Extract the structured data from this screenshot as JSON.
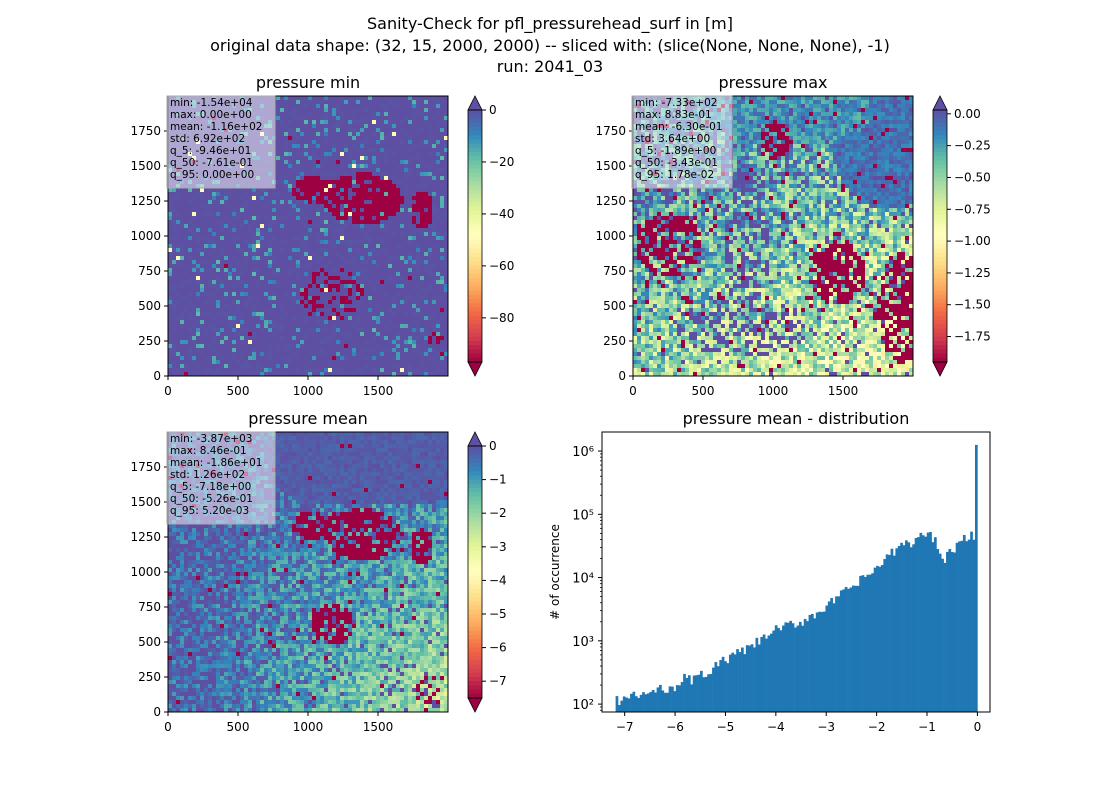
{
  "figure": {
    "title_lines": [
      "Sanity-Check for pfl_pressurehead_surf in [m]",
      "original data shape: (32, 15, 2000, 2000) -- sliced with: (slice(None, None, None), -1)",
      "run: 2041_03"
    ]
  },
  "colors": {
    "spectral": [
      "#9e0142",
      "#d53e4f",
      "#f46d43",
      "#fdae61",
      "#fee08b",
      "#ffffbf",
      "#e6f598",
      "#abdda4",
      "#66c2a5",
      "#3288bd",
      "#5e4fa2"
    ],
    "hist_bar": "#1f77b4"
  },
  "chart_data": [
    {
      "type": "heatmap",
      "title": "pressure min",
      "xlim": [
        0,
        2000
      ],
      "ylim": [
        0,
        2000
      ],
      "xticks": [
        "0",
        "500",
        "1000",
        "1500"
      ],
      "yticks": [
        "0",
        "250",
        "500",
        "750",
        "1000",
        "1250",
        "1500",
        "1750"
      ],
      "colorbar": {
        "ticks": [
          "0",
          "−20",
          "−40",
          "−60",
          "−80"
        ],
        "min": -97,
        "max": 0,
        "extend": "both"
      },
      "dominant_value": 0,
      "stats": [
        "min: -1.54e+04",
        "max: 0.00e+00",
        "mean: -1.16e+02",
        "std: 6.92e+02",
        "q_5: -9.46e+01",
        "q_50: -7.61e-01",
        "q_95: 0.00e+00"
      ]
    },
    {
      "type": "heatmap",
      "title": "pressure max",
      "xlim": [
        0,
        2000
      ],
      "ylim": [
        0,
        2000
      ],
      "xticks": [
        "0",
        "500",
        "1000",
        "1500"
      ],
      "yticks": [
        "0",
        "250",
        "500",
        "750",
        "1000",
        "1250",
        "1500",
        "1750"
      ],
      "colorbar": {
        "ticks": [
          "0.00",
          "−0.25",
          "−0.50",
          "−0.75",
          "−1.00",
          "−1.25",
          "−1.50",
          "−1.75"
        ],
        "min": -1.95,
        "max": 0.03,
        "extend": "both"
      },
      "dominant_value": -0.3,
      "stats": [
        "min: -7.33e+02",
        "max: 8.83e-01",
        "mean: -6.30e-01",
        "std: 3.64e+00",
        "q_5: -1.89e+00",
        "q_50: -3.43e-01",
        "q_95: 1.78e-02"
      ]
    },
    {
      "type": "heatmap",
      "title": "pressure mean",
      "xlim": [
        0,
        2000
      ],
      "ylim": [
        0,
        2000
      ],
      "xticks": [
        "0",
        "500",
        "1000",
        "1500"
      ],
      "yticks": [
        "0",
        "250",
        "500",
        "750",
        "1000",
        "1250",
        "1500",
        "1750"
      ],
      "colorbar": {
        "ticks": [
          "0",
          "−1",
          "−2",
          "−3",
          "−4",
          "−5",
          "−6",
          "−7"
        ],
        "min": -7.5,
        "max": 0,
        "extend": "both"
      },
      "dominant_value": -0.5,
      "stats": [
        "min: -3.87e+03",
        "max: 8.46e-01",
        "mean: -1.86e+01",
        "std: 1.26e+02",
        "q_5: -7.18e+00",
        "q_50: -5.26e-01",
        "q_95: 5.20e-03"
      ]
    },
    {
      "type": "bar",
      "title": "pressure mean - distribution",
      "ylabel": "# of occurrence",
      "yscale": "log",
      "xlim": [
        -7.45,
        0.25
      ],
      "ylim": [
        75,
        2000000
      ],
      "xticks": [
        -7,
        -6,
        -5,
        -4,
        -3,
        -2,
        -1,
        0
      ],
      "xtick_labels": [
        "−7",
        "−6",
        "−5",
        "−4",
        "−3",
        "−2",
        "−1",
        "0"
      ],
      "yticks": [
        100,
        1000,
        10000,
        100000,
        1000000
      ],
      "ytick_labels": [
        "10²",
        "10³",
        "10⁴",
        "10⁵",
        "10⁶"
      ],
      "bins": [
        -7.18,
        0.0
      ],
      "anchor_x": [
        -7.18,
        -6.5,
        -6.0,
        -5.5,
        -5.0,
        -4.5,
        -4.0,
        -3.5,
        -3.0,
        -2.5,
        -2.0,
        -1.75,
        -1.5,
        -1.25,
        -1.0,
        -0.85,
        -0.65,
        -0.45,
        -0.3,
        -0.15,
        -0.02,
        0.0
      ],
      "anchor_y": [
        115,
        150,
        200,
        280,
        500,
        800,
        1500,
        2000,
        3500,
        7000,
        14000,
        22000,
        33000,
        38000,
        52000,
        40000,
        21000,
        30000,
        38000,
        45000,
        52000,
        1250000
      ]
    }
  ]
}
